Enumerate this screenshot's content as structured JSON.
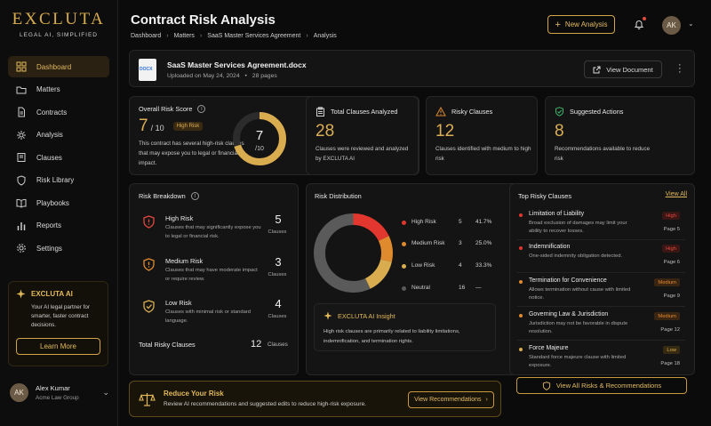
{
  "brand": {
    "name": "EXCLUTA",
    "tagline": "LEGAL AI, SIMPLIFIED"
  },
  "sidebar": {
    "items": [
      {
        "label": "Dashboard",
        "icon": "grid-icon",
        "active": true
      },
      {
        "label": "Matters",
        "icon": "folder-icon"
      },
      {
        "label": "Contracts",
        "icon": "document-icon"
      },
      {
        "label": "Analysis",
        "icon": "sparkle-icon"
      },
      {
        "label": "Clauses",
        "icon": "book-icon"
      },
      {
        "label": "Risk Library",
        "icon": "shield-icon"
      },
      {
        "label": "Playbooks",
        "icon": "open-book-icon"
      },
      {
        "label": "Reports",
        "icon": "bar-chart-icon"
      },
      {
        "label": "Settings",
        "icon": "gear-icon"
      }
    ],
    "ai_card": {
      "title": "EXCLUTA AI",
      "description": "Your AI legal partner for smarter, faster contract decisions.",
      "button": "Learn More"
    },
    "user": {
      "initials": "AK",
      "name": "Alex Kumar",
      "company": "Acme Law Group"
    }
  },
  "header": {
    "title": "Contract Risk Analysis",
    "breadcrumb": [
      "Dashboard",
      "Matters",
      "SaaS Master Services Agreement",
      "Analysis"
    ],
    "new_button": "New Analysis",
    "avatar": "AK"
  },
  "document": {
    "file_type": "DOCX",
    "name": "SaaS Master Services Agreement.docx",
    "uploaded": "Uploaded on May 24, 2024",
    "pages": "28 pages",
    "view_button": "View Document"
  },
  "risk_score": {
    "title": "Overall Risk Score",
    "value": "7",
    "max": "/ 10",
    "badge": "High Risk",
    "description": "This contract has several high-risk clauses that may expose you to legal or financial impact.",
    "gauge_value": "7",
    "gauge_max": "/10",
    "fraction": 0.7
  },
  "stats": [
    {
      "title": "Total Clauses Analyzed",
      "value": "28",
      "description": "Clauses were reviewed and analyzed by EXCLUTA AI",
      "icon": "clipboard-icon"
    },
    {
      "title": "Risky Clauses",
      "value": "12",
      "description": "Clauses identified with medium to high risk",
      "icon": "warning-icon"
    },
    {
      "title": "Suggested Actions",
      "value": "8",
      "description": "Recommendations available to reduce risk",
      "icon": "shield-check-icon"
    }
  ],
  "breakdown": {
    "title": "Risk Breakdown",
    "rows": [
      {
        "level": "High Risk",
        "description": "Clauses that may significantly expose you to legal or financial risk.",
        "count": "5",
        "unit": "Clauses",
        "color": "#e2483c"
      },
      {
        "level": "Medium Risk",
        "description": "Clauses that may have moderate impact or require review.",
        "count": "3",
        "unit": "Clauses",
        "color": "#e08a2e"
      },
      {
        "level": "Low Risk",
        "description": "Clauses with minimal risk or standard language.",
        "count": "4",
        "unit": "Clauses",
        "color": "#d9ad4f"
      }
    ],
    "total_label": "Total Risky Clauses",
    "total_value": "12",
    "total_unit": "Clauses"
  },
  "distribution": {
    "title": "Risk Distribution",
    "legend": [
      {
        "label": "High Risk",
        "count": "5",
        "percent": "41.7%",
        "color": "#e2372e"
      },
      {
        "label": "Medium Risk",
        "count": "3",
        "percent": "25.0%",
        "color": "#e08a2e"
      },
      {
        "label": "Low Risk",
        "count": "4",
        "percent": "33.3%",
        "color": "#d9ad4f"
      },
      {
        "label": "Neutral",
        "count": "16",
        "percent": "—",
        "color": "#5a5a5a"
      }
    ],
    "insight_title": "EXCLUTA AI Insight",
    "insight_text": "High risk clauses are primarily related to liability limitations, indemnification, and termination rights."
  },
  "chart_data": {
    "type": "pie",
    "categories": [
      "High Risk",
      "Medium Risk",
      "Low Risk",
      "Neutral"
    ],
    "values": [
      5,
      3,
      4,
      16
    ]
  },
  "top_risky": {
    "title": "Top Risky Clauses",
    "view_all": "View All",
    "items": [
      {
        "title": "Limitation of Liability",
        "description": "Broad exclusion of damages may limit your ability to recover losses.",
        "badge": "High",
        "page": "Page 5",
        "color": "#e2372e"
      },
      {
        "title": "Indemnification",
        "description": "One-sided indemnity obligation detected.",
        "badge": "High",
        "page": "Page 6",
        "color": "#e2372e"
      },
      {
        "title": "Termination for Convenience",
        "description": "Allows termination without cause with limited notice.",
        "badge": "Medium",
        "page": "Page 9",
        "color": "#e08a2e"
      },
      {
        "title": "Governing Law & Jurisdiction",
        "description": "Jurisdiction may not be favorable in dispute resolution.",
        "badge": "Medium",
        "page": "Page 12",
        "color": "#e08a2e"
      },
      {
        "title": "Force Majeure",
        "description": "Standard force majeure clause with limited exposure.",
        "badge": "Low",
        "page": "Page 18",
        "color": "#d9ad4f"
      }
    ],
    "button": "View All Risks & Recommendations"
  },
  "reduce": {
    "title": "Reduce Your Risk",
    "description": "Review AI recommendations and suggested edits to reduce high-risk exposure.",
    "button": "View Recommendations"
  }
}
